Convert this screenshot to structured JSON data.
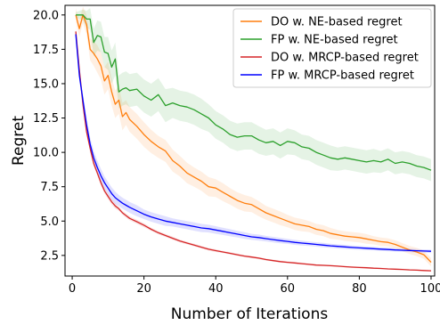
{
  "chart_data": {
    "type": "line",
    "title": "",
    "xlabel": "Number of Iterations",
    "ylabel": "Regret",
    "xlim": [
      -2,
      101
    ],
    "ylim": [
      1.0,
      20.7
    ],
    "xticks": [
      0,
      20,
      40,
      60,
      80,
      100
    ],
    "yticks": [
      2.5,
      5.0,
      7.5,
      10.0,
      12.5,
      15.0,
      17.5,
      20.0
    ],
    "grid": false,
    "legend_position": "top-right",
    "series": [
      {
        "name": "DO w. NE-based regret",
        "color": "#ff7f0e",
        "x": [
          1,
          2,
          3,
          4,
          5,
          6,
          7,
          8,
          9,
          10,
          11,
          12,
          13,
          14,
          15,
          16,
          18,
          20,
          22,
          24,
          26,
          28,
          30,
          32,
          34,
          36,
          38,
          40,
          42,
          44,
          46,
          48,
          50,
          52,
          54,
          56,
          58,
          60,
          62,
          64,
          66,
          68,
          70,
          72,
          74,
          76,
          78,
          80,
          82,
          84,
          86,
          88,
          90,
          92,
          94,
          96,
          98,
          100
        ],
        "y": [
          20.0,
          19.0,
          20.0,
          19.3,
          17.5,
          17.2,
          16.8,
          16.3,
          15.2,
          15.6,
          14.4,
          13.5,
          13.8,
          12.6,
          12.9,
          12.4,
          11.9,
          11.3,
          10.8,
          10.4,
          10.1,
          9.4,
          9.0,
          8.5,
          8.2,
          7.9,
          7.5,
          7.4,
          7.1,
          6.8,
          6.5,
          6.3,
          6.2,
          5.9,
          5.6,
          5.4,
          5.2,
          5.0,
          4.8,
          4.7,
          4.6,
          4.4,
          4.3,
          4.1,
          4.0,
          3.9,
          3.85,
          3.8,
          3.7,
          3.6,
          3.5,
          3.45,
          3.3,
          3.1,
          2.9,
          2.75,
          2.55,
          2.0
        ],
        "band": [
          0.5,
          0.6,
          0.6,
          0.7,
          0.8,
          0.9,
          1.0,
          1.0,
          1.0,
          1.0,
          1.0,
          1.0,
          1.0,
          1.0,
          0.9,
          0.9,
          0.9,
          0.9,
          0.85,
          0.8,
          0.8,
          0.8,
          0.75,
          0.75,
          0.7,
          0.7,
          0.7,
          0.65,
          0.65,
          0.6,
          0.6,
          0.6,
          0.55,
          0.55,
          0.5,
          0.5,
          0.5,
          0.45,
          0.45,
          0.45,
          0.4,
          0.4,
          0.4,
          0.4,
          0.35,
          0.35,
          0.35,
          0.35,
          0.35,
          0.3,
          0.3,
          0.3,
          0.3,
          0.3,
          0.3,
          0.3,
          0.3,
          0.3
        ]
      },
      {
        "name": "FP w. NE-based regret",
        "color": "#2ca02c",
        "x": [
          1,
          2,
          3,
          4,
          5,
          6,
          7,
          8,
          9,
          10,
          11,
          12,
          13,
          14,
          15,
          16,
          18,
          20,
          22,
          24,
          26,
          28,
          30,
          32,
          34,
          36,
          38,
          40,
          42,
          44,
          46,
          48,
          50,
          52,
          54,
          56,
          58,
          60,
          62,
          64,
          66,
          68,
          70,
          72,
          74,
          76,
          78,
          80,
          82,
          84,
          86,
          88,
          90,
          92,
          94,
          96,
          98,
          100
        ],
        "y": [
          20.0,
          20.0,
          20.0,
          19.7,
          19.7,
          18.0,
          18.5,
          18.4,
          17.3,
          17.2,
          16.2,
          16.8,
          14.4,
          14.6,
          14.7,
          14.5,
          14.6,
          14.1,
          13.8,
          14.2,
          13.4,
          13.6,
          13.4,
          13.3,
          13.1,
          12.8,
          12.5,
          12.0,
          11.7,
          11.3,
          11.1,
          11.2,
          11.2,
          10.9,
          10.7,
          10.8,
          10.5,
          10.8,
          10.7,
          10.4,
          10.3,
          10.0,
          9.8,
          9.6,
          9.5,
          9.6,
          9.5,
          9.4,
          9.3,
          9.4,
          9.3,
          9.5,
          9.2,
          9.3,
          9.2,
          9.0,
          8.9,
          8.7
        ],
        "band": [
          0.2,
          0.3,
          0.4,
          0.6,
          0.8,
          1.0,
          1.1,
          1.1,
          1.1,
          1.2,
          1.2,
          1.2,
          1.2,
          1.2,
          1.2,
          1.2,
          1.2,
          1.2,
          1.2,
          1.2,
          1.2,
          1.1,
          1.1,
          1.1,
          1.1,
          1.1,
          1.0,
          1.0,
          1.0,
          1.0,
          1.0,
          1.0,
          1.0,
          1.0,
          0.95,
          0.95,
          0.95,
          0.95,
          0.9,
          0.9,
          0.9,
          0.9,
          0.9,
          0.9,
          0.85,
          0.85,
          0.85,
          0.85,
          0.85,
          0.85,
          0.8,
          0.8,
          0.8,
          0.8,
          0.8,
          0.8,
          0.8,
          0.8
        ]
      },
      {
        "name": "DO w. MRCP-based regret",
        "color": "#d62728",
        "x": [
          1,
          2,
          3,
          4,
          5,
          6,
          7,
          8,
          9,
          10,
          11,
          12,
          13,
          14,
          15,
          16,
          18,
          20,
          22,
          24,
          26,
          28,
          30,
          32,
          34,
          36,
          38,
          40,
          42,
          44,
          46,
          48,
          50,
          52,
          54,
          56,
          58,
          60,
          62,
          64,
          66,
          68,
          70,
          72,
          74,
          76,
          78,
          80,
          82,
          84,
          86,
          88,
          90,
          92,
          94,
          96,
          98,
          100
        ],
        "y": [
          18.8,
          16.0,
          13.5,
          11.5,
          10.3,
          9.2,
          8.5,
          7.8,
          7.2,
          6.8,
          6.4,
          6.1,
          5.9,
          5.6,
          5.4,
          5.2,
          4.95,
          4.7,
          4.4,
          4.15,
          3.95,
          3.75,
          3.55,
          3.4,
          3.25,
          3.1,
          2.95,
          2.85,
          2.75,
          2.65,
          2.55,
          2.45,
          2.38,
          2.3,
          2.2,
          2.12,
          2.05,
          2.0,
          1.95,
          1.9,
          1.85,
          1.8,
          1.78,
          1.75,
          1.72,
          1.68,
          1.65,
          1.62,
          1.6,
          1.57,
          1.55,
          1.52,
          1.5,
          1.48,
          1.45,
          1.43,
          1.4,
          1.38
        ],
        "band": [
          0.3,
          0.3,
          0.3,
          0.25,
          0.25,
          0.2,
          0.2,
          0.2,
          0.2,
          0.2,
          0.2,
          0.2,
          0.15,
          0.15,
          0.15,
          0.15,
          0.15,
          0.15,
          0.12,
          0.12,
          0.12,
          0.12,
          0.1,
          0.1,
          0.1,
          0.1,
          0.1,
          0.1,
          0.08,
          0.08,
          0.08,
          0.08,
          0.08,
          0.08,
          0.08,
          0.07,
          0.07,
          0.07,
          0.07,
          0.07,
          0.07,
          0.06,
          0.06,
          0.06,
          0.06,
          0.06,
          0.06,
          0.06,
          0.06,
          0.05,
          0.05,
          0.05,
          0.05,
          0.05,
          0.05,
          0.05,
          0.05,
          0.05
        ]
      },
      {
        "name": "FP w. MRCP-based regret",
        "color": "#0000ff",
        "x": [
          1,
          2,
          3,
          4,
          5,
          6,
          7,
          8,
          9,
          10,
          11,
          12,
          13,
          14,
          15,
          16,
          18,
          20,
          22,
          24,
          26,
          28,
          30,
          32,
          34,
          36,
          38,
          40,
          42,
          44,
          46,
          48,
          50,
          52,
          54,
          56,
          58,
          60,
          62,
          64,
          66,
          68,
          70,
          72,
          74,
          76,
          78,
          80,
          82,
          84,
          86,
          88,
          90,
          92,
          94,
          96,
          98,
          100
        ],
        "y": [
          18.6,
          15.6,
          13.8,
          12.0,
          10.6,
          9.6,
          8.9,
          8.3,
          7.8,
          7.4,
          7.0,
          6.7,
          6.5,
          6.3,
          6.15,
          6.0,
          5.75,
          5.5,
          5.3,
          5.15,
          5.0,
          4.9,
          4.8,
          4.7,
          4.6,
          4.5,
          4.45,
          4.35,
          4.25,
          4.15,
          4.05,
          3.95,
          3.85,
          3.8,
          3.72,
          3.65,
          3.58,
          3.52,
          3.45,
          3.4,
          3.35,
          3.3,
          3.25,
          3.2,
          3.16,
          3.12,
          3.08,
          3.05,
          3.02,
          2.99,
          2.96,
          2.93,
          2.9,
          2.88,
          2.86,
          2.84,
          2.82,
          2.8
        ],
        "band": [
          0.3,
          0.4,
          0.5,
          0.5,
          0.5,
          0.5,
          0.5,
          0.5,
          0.45,
          0.45,
          0.45,
          0.45,
          0.4,
          0.4,
          0.4,
          0.4,
          0.4,
          0.35,
          0.35,
          0.35,
          0.35,
          0.3,
          0.3,
          0.3,
          0.3,
          0.3,
          0.28,
          0.28,
          0.26,
          0.26,
          0.24,
          0.24,
          0.22,
          0.22,
          0.2,
          0.2,
          0.2,
          0.18,
          0.18,
          0.18,
          0.16,
          0.16,
          0.16,
          0.15,
          0.15,
          0.15,
          0.14,
          0.14,
          0.14,
          0.13,
          0.13,
          0.13,
          0.12,
          0.12,
          0.12,
          0.12,
          0.12,
          0.12
        ]
      }
    ]
  }
}
